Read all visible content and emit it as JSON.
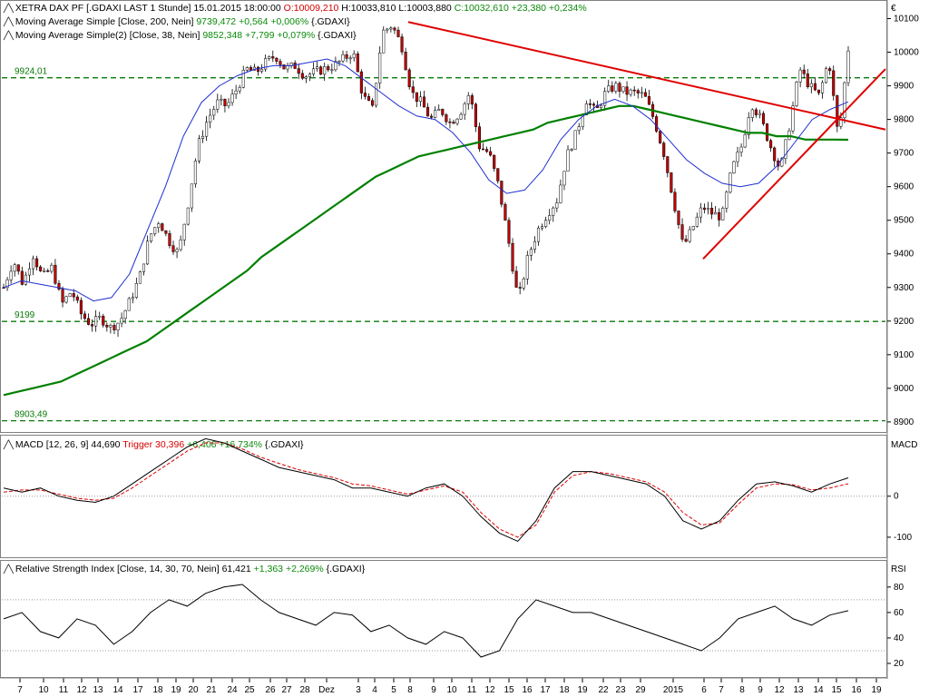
{
  "price_panel": {
    "title": "XETRA DAX PF [.GDAXI LAST 1 Stunde] 15.01.2015 18:00:00",
    "ohlc": {
      "open": "O:10009,210",
      "high": "H:10033,810",
      "low": "L:10003,880",
      "close": "C:10032,610",
      "change": "+23,380",
      "change_pct": "+0,234%"
    },
    "ma200": {
      "label": "Moving Average Simple [Close, 200, Nein]",
      "value": "9739,472",
      "change": "+0,564",
      "change_pct": "+0,006%",
      "symbol": "{.GDAXI}",
      "color": "#008000"
    },
    "ma38": {
      "label": "Moving Average Simple(2) [Close, 38, Nein]",
      "value": "9852,348",
      "change": "+7,799",
      "change_pct": "+0,079%",
      "symbol": "{.GDAXI}",
      "color": "#1e2fd0"
    },
    "currency": "€",
    "y_ticks": [
      "10100",
      "10000",
      "9900",
      "9800",
      "9700",
      "9600",
      "9500",
      "9400",
      "9300",
      "9200",
      "9100",
      "9000",
      "8900"
    ],
    "levels": [
      "9924,01",
      "9199",
      "8903,49"
    ],
    "level_values": [
      9924.01,
      9199,
      8903.49
    ],
    "ylim": [
      8870,
      10150
    ]
  },
  "macd_panel": {
    "label": "MACD [12, 26, 9]",
    "value": "44,690",
    "trigger_label": "Trigger",
    "trigger_value": "30,396",
    "change": "+6,406",
    "change_pct": "+16,734%",
    "symbol": "{.GDAXI}",
    "axis_title": "MACD",
    "y_ticks": [
      "0",
      "-100"
    ]
  },
  "rsi_panel": {
    "label": "Relative Strength Index [Close, 14, 30, 70, Nein]",
    "value": "61,421",
    "change": "+1,363",
    "change_pct": "+2,269%",
    "symbol": "{.GDAXI}",
    "axis_title": "RSI",
    "y_ticks": [
      "80",
      "60",
      "40",
      "20"
    ]
  },
  "x_axis": {
    "labels": [
      "7",
      "10",
      "11",
      "12",
      "13",
      "14",
      "17",
      "18",
      "19",
      "20",
      "21",
      "24",
      "25",
      "26",
      "27",
      "28",
      "Dez",
      "3",
      "4",
      "5",
      "8",
      "9",
      "10",
      "11",
      "12",
      "15",
      "16",
      "17",
      "18",
      "19",
      "22",
      "23",
      "29",
      "2015",
      "6",
      "7",
      "8",
      "9",
      "12",
      "13",
      "14",
      "15",
      "16",
      "19"
    ]
  },
  "chart_data": {
    "type": "line",
    "note_series": "Hourly DAX candlesticks approximated by close path",
    "price_close": [
      9300,
      9380,
      9310,
      9400,
      9330,
      9360,
      9250,
      9290,
      9220,
      9190,
      9210,
      9180,
      9200,
      9260,
      9330,
      9450,
      9500,
      9440,
      9400,
      9550,
      9720,
      9800,
      9850,
      9840,
      9890,
      9950,
      9940,
      9970,
      9990,
      9950,
      9960,
      9930,
      9940,
      9950,
      9960,
      9980,
      10000,
      9870,
      9830,
      10060,
      10080,
      10020,
      9880,
      9850,
      9800,
      9830,
      9790,
      9820,
      9880,
      9720,
      9700,
      9600,
      9440,
      9260,
      9390,
      9470,
      9520,
      9560,
      9690,
      9760,
      9860,
      9820,
      9880,
      9900,
      9880,
      9880,
      9870,
      9800,
      9700,
      9560,
      9420,
      9480,
      9540,
      9520,
      9510,
      9650,
      9720,
      9850,
      9800,
      9720,
      9650,
      9790,
      9950,
      9900,
      9870,
      9980,
      9740,
      10010
    ],
    "ma200": [
      8980,
      8990,
      9000,
      9010,
      9020,
      9040,
      9060,
      9080,
      9100,
      9120,
      9140,
      9170,
      9200,
      9230,
      9260,
      9290,
      9320,
      9350,
      9390,
      9420,
      9450,
      9480,
      9510,
      9540,
      9570,
      9600,
      9630,
      9650,
      9670,
      9690,
      9700,
      9710,
      9720,
      9730,
      9740,
      9750,
      9760,
      9770,
      9790,
      9800,
      9810,
      9820,
      9830,
      9840,
      9840,
      9830,
      9820,
      9810,
      9800,
      9790,
      9780,
      9770,
      9760,
      9760,
      9750,
      9750,
      9740,
      9740,
      9740,
      9739.472
    ],
    "ma38": [
      9300,
      9320,
      9310,
      9300,
      9290,
      9260,
      9270,
      9340,
      9470,
      9600,
      9750,
      9850,
      9900,
      9930,
      9950,
      9960,
      9960,
      9970,
      9980,
      9960,
      9920,
      9880,
      9840,
      9810,
      9800,
      9760,
      9700,
      9620,
      9580,
      9590,
      9650,
      9740,
      9800,
      9840,
      9860,
      9840,
      9800,
      9740,
      9680,
      9640,
      9610,
      9600,
      9610,
      9660,
      9730,
      9800,
      9830,
      9852.348
    ],
    "macd": [
      20,
      10,
      20,
      0,
      -10,
      -15,
      0,
      30,
      60,
      90,
      120,
      140,
      130,
      110,
      90,
      70,
      60,
      50,
      40,
      20,
      20,
      10,
      0,
      20,
      30,
      0,
      -50,
      -90,
      -110,
      -60,
      20,
      60,
      60,
      50,
      40,
      30,
      0,
      -60,
      -80,
      -60,
      -10,
      30,
      35,
      25,
      10,
      30,
      44.69
    ],
    "trigger": [
      10,
      15,
      15,
      5,
      -5,
      -10,
      -5,
      20,
      50,
      80,
      110,
      130,
      130,
      115,
      95,
      80,
      65,
      55,
      45,
      30,
      25,
      15,
      5,
      15,
      25,
      10,
      -40,
      -80,
      -100,
      -70,
      10,
      50,
      60,
      55,
      45,
      35,
      10,
      -40,
      -70,
      -65,
      -20,
      20,
      30,
      28,
      15,
      20,
      30.396
    ],
    "rsi": [
      55,
      60,
      45,
      40,
      55,
      50,
      35,
      45,
      60,
      70,
      65,
      75,
      80,
      82,
      70,
      60,
      55,
      50,
      60,
      58,
      45,
      50,
      40,
      35,
      45,
      40,
      25,
      30,
      55,
      70,
      65,
      60,
      60,
      55,
      50,
      45,
      40,
      35,
      30,
      40,
      55,
      60,
      65,
      55,
      50,
      58,
      61.421
    ],
    "rsi_levels": [
      30,
      70
    ],
    "trendlines": "red downtrend from ~10090 to ~9770; red uptrend from ~9385 to ~9950"
  }
}
